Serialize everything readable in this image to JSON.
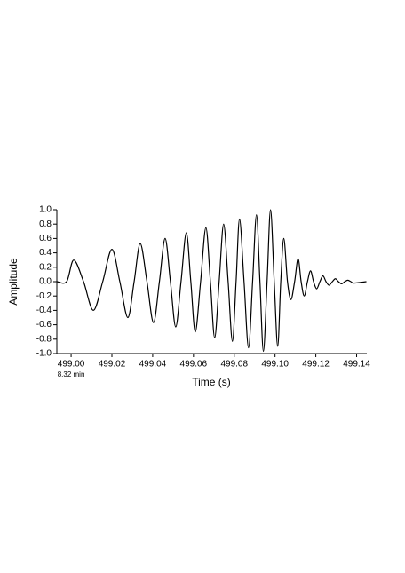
{
  "chart_data": {
    "type": "line",
    "xlabel": "Time (s)",
    "ylabel": "Amplitude",
    "annotation": "8.32 min",
    "x": [
      498.993,
      498.9978,
      499.0013,
      499.0061,
      499.0109,
      499.0155,
      499.02,
      499.0239,
      499.0278,
      499.0309,
      499.0339,
      499.0372,
      499.0404,
      499.0433,
      499.0461,
      499.0487,
      499.0513,
      499.0539,
      499.0565,
      499.0587,
      499.0609,
      499.0635,
      499.0661,
      499.0683,
      499.0704,
      499.0726,
      499.0748,
      499.077,
      499.0791,
      499.0809,
      499.0826,
      499.0848,
      499.087,
      499.089,
      499.0909,
      499.0926,
      499.0943,
      499.0961,
      499.0978,
      499.0996,
      499.1013,
      499.1028,
      499.1043,
      499.1061,
      499.1078,
      499.1096,
      499.1113,
      499.1128,
      499.1143,
      499.1159,
      499.1174,
      499.1189,
      499.1204,
      499.122,
      499.1235,
      499.125,
      499.1265,
      499.1281,
      499.1296,
      499.1311,
      499.1326,
      499.1342,
      499.1357,
      499.1372,
      499.1387,
      499.1448
    ],
    "series": [
      {
        "color": "#000000",
        "values": [
          0,
          0,
          0.3,
          0,
          -0.4,
          0,
          0.45,
          0,
          -0.5,
          0,
          0.53,
          0,
          -0.57,
          0,
          0.6,
          0,
          -0.63,
          0,
          0.68,
          0,
          -0.7,
          0,
          0.75,
          0,
          -0.78,
          0,
          0.8,
          0,
          -0.83,
          0,
          0.87,
          0,
          -0.92,
          0,
          0.93,
          0,
          -0.97,
          0,
          1.0,
          0,
          -0.9,
          0,
          0.6,
          0,
          -0.25,
          0,
          0.32,
          0,
          -0.2,
          0,
          0.15,
          0,
          -0.1,
          0,
          0.08,
          0,
          -0.05,
          0,
          0.04,
          0,
          -0.03,
          0,
          0.02,
          0,
          -0.02,
          0
        ]
      }
    ],
    "xlim": [
      498.993,
      499.145
    ],
    "ylim": [
      -1.0,
      1.0
    ],
    "xticks": [
      {
        "value": 499,
        "label": "499.00"
      },
      499.02,
      499.04,
      499.06,
      499.08,
      {
        "value": 499.1,
        "label": "499.10"
      },
      499.12,
      499.14
    ],
    "yticks": [
      {
        "value": -1,
        "label": "-1.0"
      },
      {
        "value": -0.8,
        "label": "-0.8"
      },
      {
        "value": -0.6,
        "label": "-0.6"
      },
      {
        "value": -0.4,
        "label": "-0.4"
      },
      {
        "value": -0.2,
        "label": "-0.2"
      },
      {
        "value": 0,
        "label": "0.0"
      },
      {
        "value": 0.2,
        "label": "0.2"
      },
      {
        "value": 0.4,
        "label": "0.4"
      },
      {
        "value": 0.6,
        "label": "0.6"
      },
      {
        "value": 0.8,
        "label": "0.8"
      },
      {
        "value": 1,
        "label": "1.0"
      }
    ],
    "grid": false
  }
}
